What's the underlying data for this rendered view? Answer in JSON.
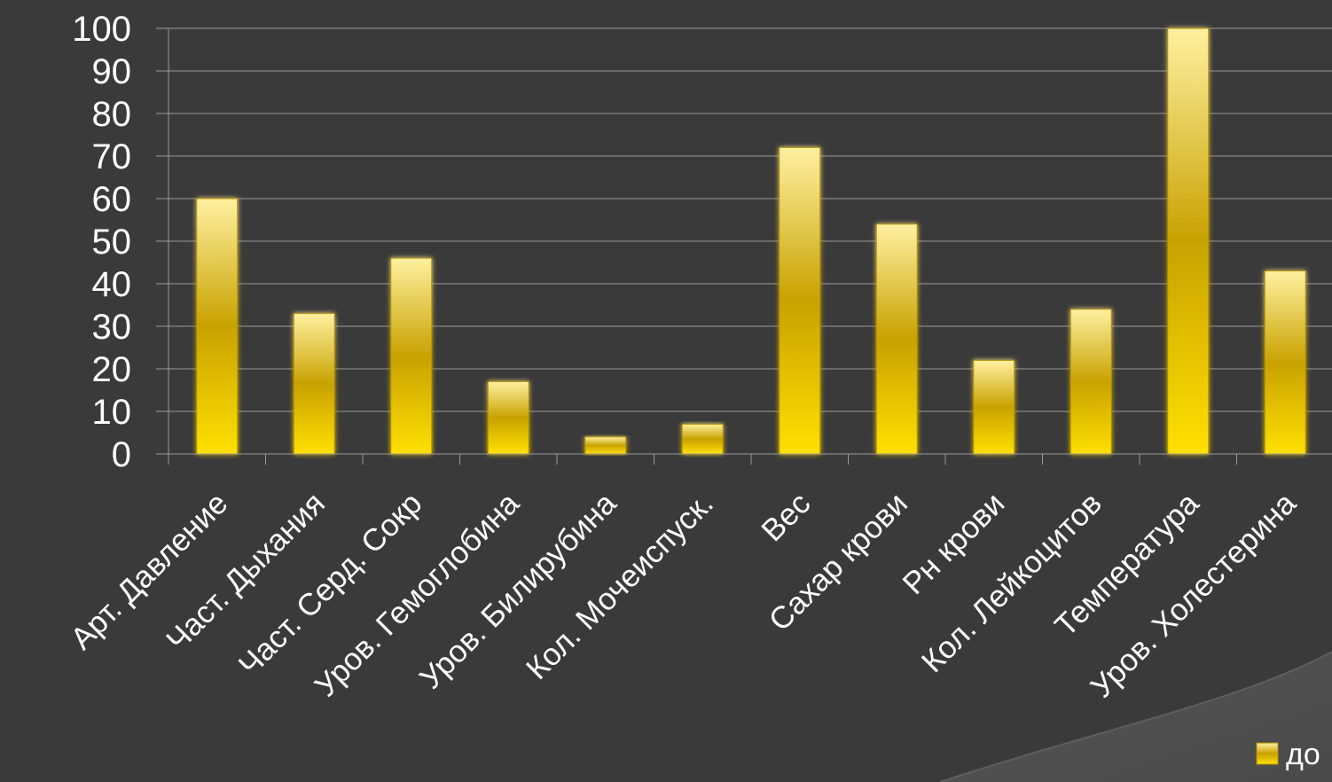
{
  "chart_data": {
    "type": "bar",
    "categories": [
      "Арт. Давление",
      "Част. Дыхания",
      "Част. Серд. Сокр",
      "Уров. Гемоглобина",
      "Уров. Билирубина",
      "Кол. Мочеиспуск.",
      "Вес",
      "Сахар крови",
      "Рн крови",
      "Кол. Лейкоцитов",
      "Температура",
      "Уров. Холестерина"
    ],
    "series": [
      {
        "name": "до",
        "values": [
          60,
          33,
          46,
          17,
          4,
          7,
          72,
          54,
          22,
          34,
          100,
          43
        ]
      }
    ],
    "yticks": [
      0,
      10,
      20,
      30,
      40,
      50,
      60,
      70,
      80,
      90,
      100
    ],
    "ylim": [
      0,
      100
    ],
    "grid": true,
    "legend_position": "bottom-right",
    "title": "",
    "xlabel": "",
    "ylabel": ""
  },
  "colors": {
    "background": "#3a3a3a",
    "bar_top": "#fff0a0",
    "bar_mid": "#c8a200",
    "bar_bottom": "#ffe000",
    "grid": "#9a9a9a",
    "text": "#ffffff"
  }
}
